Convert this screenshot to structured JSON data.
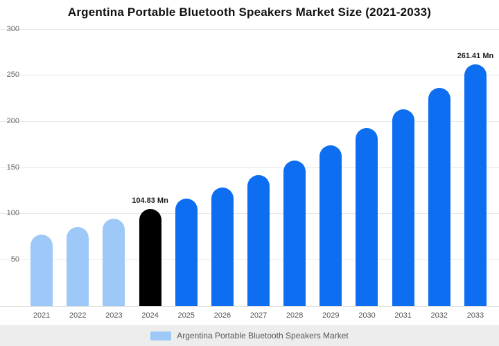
{
  "chart_data": {
    "type": "bar",
    "title": "Argentina Portable Bluetooth Speakers Market Size (2021-2033)",
    "categories": [
      "2021",
      "2022",
      "2023",
      "2024",
      "2025",
      "2026",
      "2027",
      "2028",
      "2029",
      "2030",
      "2031",
      "2032",
      "2033"
    ],
    "values": [
      77.32,
      85.58,
      94.72,
      104.83,
      116.02,
      128.41,
      142.12,
      157.29,
      174.08,
      192.67,
      213.24,
      236.01,
      261.41
    ],
    "data_labels": [
      "",
      "",
      "",
      "104.83 Mn",
      "",
      "",
      "",
      "",
      "",
      "",
      "",
      "",
      "261.41 Mn"
    ],
    "bar_colors": [
      "#9ec8f7",
      "#9ec8f7",
      "#9ec8f7",
      "#000000",
      "#0d6ef2",
      "#0d6ef2",
      "#0d6ef2",
      "#0d6ef2",
      "#0d6ef2",
      "#0d6ef2",
      "#0d6ef2",
      "#0d6ef2",
      "#0d6ef2"
    ],
    "ylim": [
      0,
      300
    ],
    "yticks": [
      300,
      250,
      200,
      150,
      100,
      50
    ],
    "grid": true,
    "unit": "Mn",
    "legend": {
      "label": "Argentina Portable Bluetooth Speakers Market",
      "swatch_color": "#9ec8f7",
      "position": "bottom"
    },
    "colors": {
      "historical_bar": "#9ec8f7",
      "base_year_bar": "#000000",
      "forecast_bar": "#0d6ef2",
      "gridline": "#e8e8e8",
      "legend_background": "#ededed"
    }
  }
}
